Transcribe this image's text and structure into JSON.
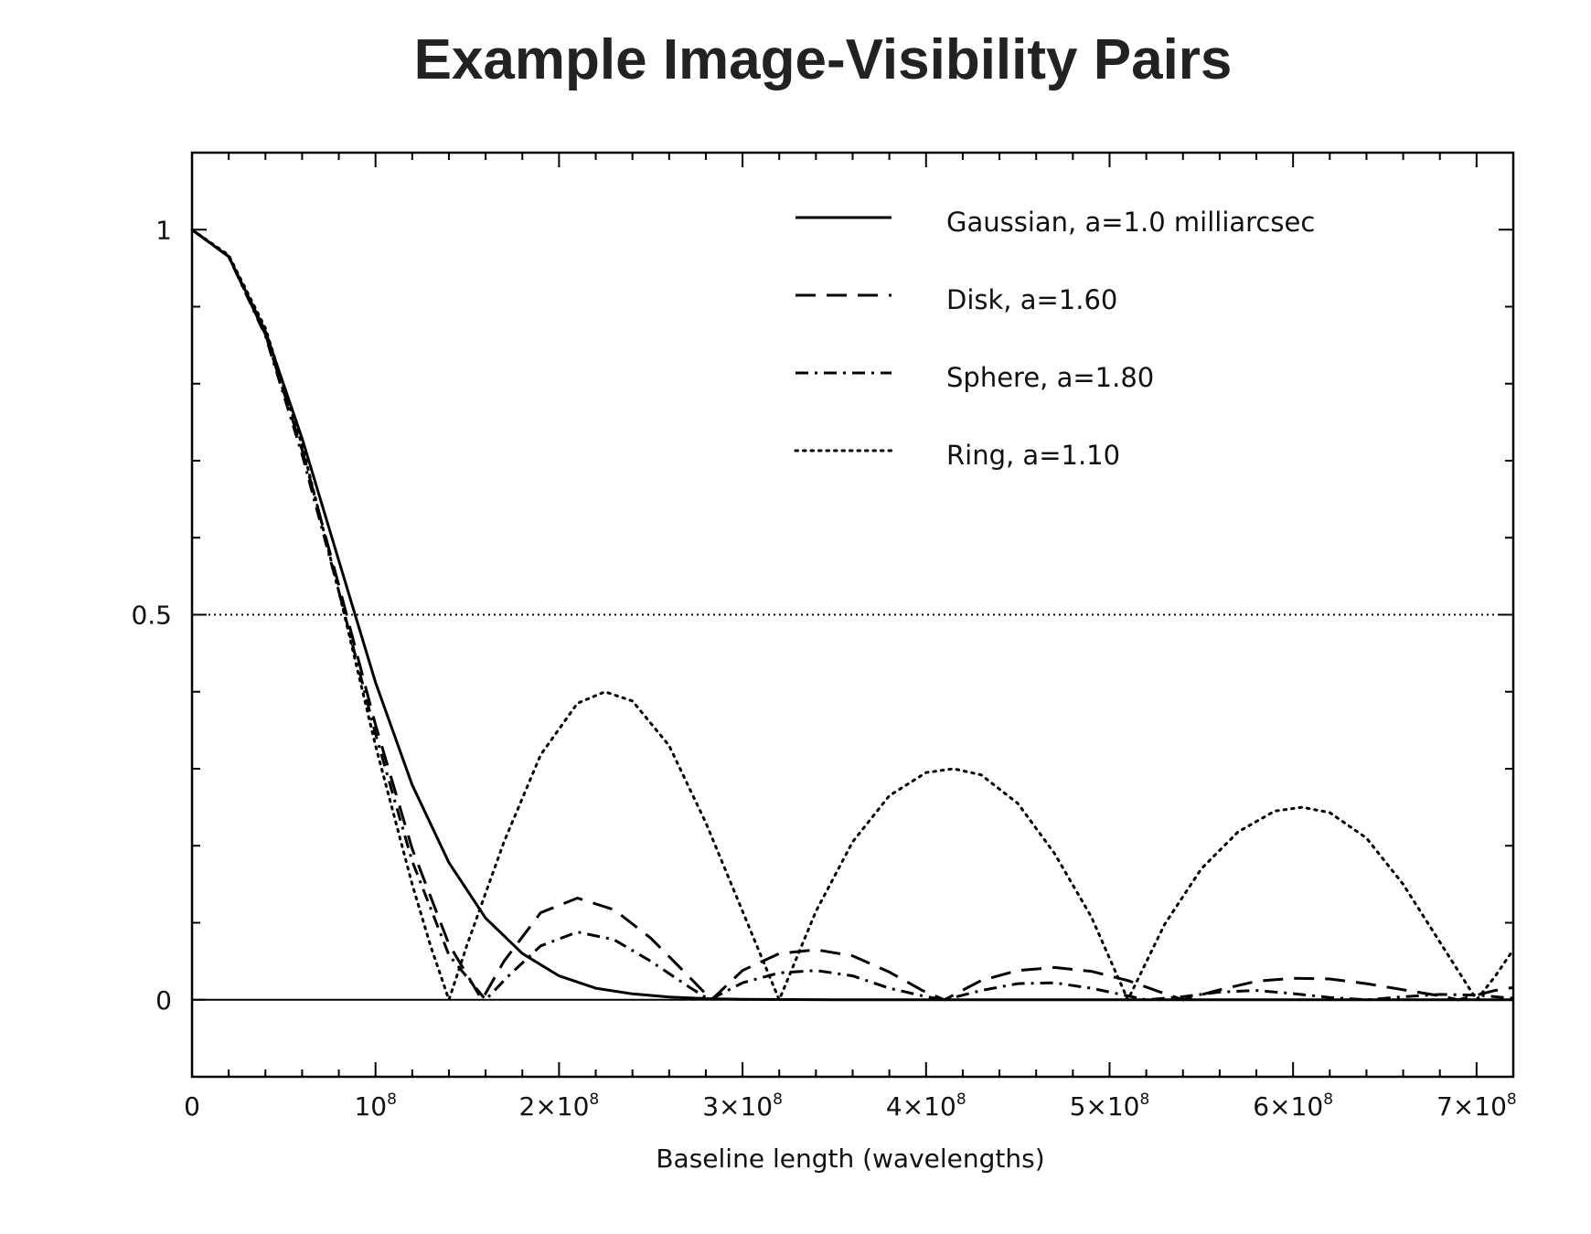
{
  "chart_data": {
    "type": "line",
    "title": "Example Image-Visibility Pairs",
    "xlabel": "Baseline length (wavelengths)",
    "ylabel": "",
    "xlim": [
      0,
      720000000
    ],
    "ylim": [
      -0.1,
      1.1
    ],
    "grid": false,
    "legend_position": "top-right",
    "x_ticks": [
      {
        "value": 0,
        "label": "0",
        "base": "",
        "sup": ""
      },
      {
        "value": 100000000,
        "label": "",
        "base": "10",
        "sup": "8"
      },
      {
        "value": 200000000,
        "label": "",
        "base": "2×10",
        "sup": "8"
      },
      {
        "value": 300000000,
        "label": "",
        "base": "3×10",
        "sup": "8"
      },
      {
        "value": 400000000,
        "label": "",
        "base": "4×10",
        "sup": "8"
      },
      {
        "value": 500000000,
        "label": "",
        "base": "5×10",
        "sup": "8"
      },
      {
        "value": 600000000,
        "label": "",
        "base": "6×10",
        "sup": "8"
      },
      {
        "value": 700000000,
        "label": "",
        "base": "7×10",
        "sup": "8"
      }
    ],
    "y_ticks": [
      {
        "value": 0,
        "label": "0"
      },
      {
        "value": 0.5,
        "label": "0.5"
      },
      {
        "value": 1,
        "label": "1"
      }
    ],
    "reference_lines": [
      {
        "y": 0,
        "style": "solid"
      },
      {
        "y": 0.5,
        "style": "dotted"
      }
    ],
    "series": [
      {
        "name": "Gaussian, a=1.0 milliarcsec",
        "line_style": "solid",
        "color": "#000000",
        "points": [
          [
            0,
            1.0
          ],
          [
            20000000,
            0.965
          ],
          [
            40000000,
            0.868
          ],
          [
            60000000,
            0.729
          ],
          [
            80000000,
            0.57
          ],
          [
            100000000,
            0.412
          ],
          [
            120000000,
            0.279
          ],
          [
            140000000,
            0.178
          ],
          [
            160000000,
            0.106
          ],
          [
            180000000,
            0.06
          ],
          [
            200000000,
            0.031
          ],
          [
            220000000,
            0.015
          ],
          [
            240000000,
            0.0076
          ],
          [
            260000000,
            0.0036
          ],
          [
            280000000,
            0.0015
          ],
          [
            300000000,
            0.0005
          ],
          [
            350000000,
            0.0001
          ],
          [
            400000000,
            0.0
          ],
          [
            720000000,
            0.0
          ]
        ]
      },
      {
        "name": "Disk, a=1.60",
        "line_style": "dashed",
        "color": "#000000",
        "points": [
          [
            0,
            1.0
          ],
          [
            20000000,
            0.965
          ],
          [
            40000000,
            0.864
          ],
          [
            60000000,
            0.714
          ],
          [
            80000000,
            0.538
          ],
          [
            100000000,
            0.357
          ],
          [
            120000000,
            0.196
          ],
          [
            140000000,
            0.072
          ],
          [
            158000000,
            0.0
          ],
          [
            170000000,
            0.05
          ],
          [
            190000000,
            0.113
          ],
          [
            210000000,
            0.132
          ],
          [
            230000000,
            0.117
          ],
          [
            250000000,
            0.08
          ],
          [
            270000000,
            0.032
          ],
          [
            283000000,
            0.0
          ],
          [
            300000000,
            0.038
          ],
          [
            320000000,
            0.06
          ],
          [
            340000000,
            0.065
          ],
          [
            360000000,
            0.057
          ],
          [
            380000000,
            0.036
          ],
          [
            398000000,
            0.012
          ],
          [
            410000000,
            0.0
          ],
          [
            430000000,
            0.025
          ],
          [
            450000000,
            0.038
          ],
          [
            470000000,
            0.042
          ],
          [
            490000000,
            0.037
          ],
          [
            510000000,
            0.025
          ],
          [
            530000000,
            0.008
          ],
          [
            540000000,
            0.0
          ],
          [
            560000000,
            0.013
          ],
          [
            580000000,
            0.024
          ],
          [
            600000000,
            0.028
          ],
          [
            620000000,
            0.027
          ],
          [
            640000000,
            0.021
          ],
          [
            660000000,
            0.013
          ],
          [
            680000000,
            0.005
          ],
          [
            690000000,
            0.0
          ],
          [
            710000000,
            0.012
          ],
          [
            720000000,
            0.016
          ]
        ]
      },
      {
        "name": "Sphere, a=1.80",
        "line_style": "dashdot",
        "color": "#000000",
        "points": [
          [
            0,
            1.0
          ],
          [
            20000000,
            0.965
          ],
          [
            40000000,
            0.862
          ],
          [
            60000000,
            0.708
          ],
          [
            80000000,
            0.53
          ],
          [
            100000000,
            0.345
          ],
          [
            120000000,
            0.18
          ],
          [
            140000000,
            0.058
          ],
          [
            160000000,
            0.0
          ],
          [
            172000000,
            0.03
          ],
          [
            190000000,
            0.07
          ],
          [
            210000000,
            0.088
          ],
          [
            230000000,
            0.078
          ],
          [
            250000000,
            0.05
          ],
          [
            270000000,
            0.018
          ],
          [
            282000000,
            0.0
          ],
          [
            300000000,
            0.022
          ],
          [
            320000000,
            0.035
          ],
          [
            340000000,
            0.038
          ],
          [
            360000000,
            0.031
          ],
          [
            380000000,
            0.015
          ],
          [
            400000000,
            0.004
          ],
          [
            410000000,
            0.0
          ],
          [
            430000000,
            0.012
          ],
          [
            450000000,
            0.021
          ],
          [
            470000000,
            0.022
          ],
          [
            490000000,
            0.015
          ],
          [
            510000000,
            0.005
          ],
          [
            520000000,
            0.0
          ],
          [
            540000000,
            0.004
          ],
          [
            560000000,
            0.01
          ],
          [
            580000000,
            0.012
          ],
          [
            600000000,
            0.008
          ],
          [
            620000000,
            0.003
          ],
          [
            640000000,
            0.0
          ],
          [
            660000000,
            0.004
          ],
          [
            680000000,
            0.007
          ],
          [
            700000000,
            0.006
          ],
          [
            720000000,
            0.002
          ]
        ]
      },
      {
        "name": "Ring, a=1.10",
        "line_style": "dotted",
        "color": "#000000",
        "points": [
          [
            0,
            1.0
          ],
          [
            20000000,
            0.967
          ],
          [
            40000000,
            0.872
          ],
          [
            60000000,
            0.72
          ],
          [
            80000000,
            0.53
          ],
          [
            100000000,
            0.33
          ],
          [
            120000000,
            0.15
          ],
          [
            130000000,
            0.07
          ],
          [
            140000000,
            0.0
          ],
          [
            150000000,
            0.072
          ],
          [
            170000000,
            0.205
          ],
          [
            190000000,
            0.318
          ],
          [
            210000000,
            0.385
          ],
          [
            225000000,
            0.4
          ],
          [
            240000000,
            0.388
          ],
          [
            260000000,
            0.33
          ],
          [
            280000000,
            0.23
          ],
          [
            300000000,
            0.115
          ],
          [
            320000000,
            0.0
          ],
          [
            340000000,
            0.115
          ],
          [
            360000000,
            0.205
          ],
          [
            380000000,
            0.265
          ],
          [
            400000000,
            0.295
          ],
          [
            415000000,
            0.3
          ],
          [
            430000000,
            0.292
          ],
          [
            450000000,
            0.255
          ],
          [
            470000000,
            0.19
          ],
          [
            490000000,
            0.108
          ],
          [
            510000000,
            0.0
          ],
          [
            530000000,
            0.098
          ],
          [
            550000000,
            0.17
          ],
          [
            570000000,
            0.218
          ],
          [
            590000000,
            0.245
          ],
          [
            605000000,
            0.25
          ],
          [
            620000000,
            0.243
          ],
          [
            640000000,
            0.21
          ],
          [
            660000000,
            0.15
          ],
          [
            680000000,
            0.075
          ],
          [
            700000000,
            0.0
          ],
          [
            710000000,
            0.03
          ],
          [
            720000000,
            0.065
          ]
        ]
      }
    ]
  }
}
